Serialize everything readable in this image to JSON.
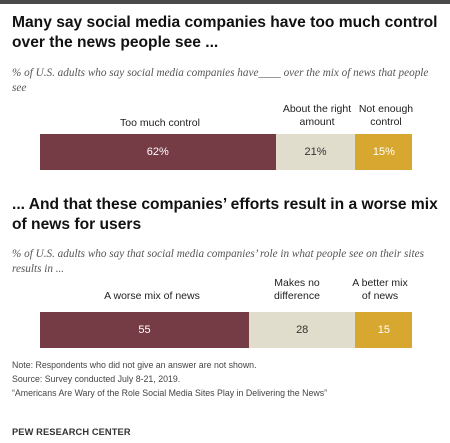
{
  "colors": {
    "negative": "#753c46",
    "neutral": "#e0ddcc",
    "positive": "#d8a730",
    "topline": "#4a4a4a"
  },
  "chart_data": [
    {
      "type": "bar",
      "orientation": "horizontal-stacked",
      "title": "Many say social media companies have too much control over the news people see ...",
      "subtitle": "% of U.S. adults who say social media companies have____ over the mix of news that people see",
      "categories": [
        "Too much control",
        "About the right amount",
        "Not enough control"
      ],
      "values": [
        62,
        21,
        15
      ],
      "value_labels": [
        "62%",
        "21%",
        "15%"
      ],
      "xlim": [
        0,
        100
      ]
    },
    {
      "type": "bar",
      "orientation": "horizontal-stacked",
      "title": "... And that these companies’ efforts result in a worse mix of news for users",
      "subtitle": "% of U.S. adults who say that social media companies’ role in what people see on their sites results in ...",
      "categories": [
        "A worse mix of news",
        "Makes no difference",
        "A better mix of news"
      ],
      "values": [
        55,
        28,
        15
      ],
      "value_labels": [
        "55",
        "28",
        "15"
      ],
      "xlim": [
        0,
        100
      ]
    }
  ],
  "footer": {
    "note": "Note: Respondents who did not give an answer are not shown.",
    "source": "Source: Survey conducted July 8-21, 2019.",
    "report": "“Americans Are Wary of the Role Social Media Sites Play in Delivering the News”",
    "brand": "PEW RESEARCH CENTER"
  }
}
